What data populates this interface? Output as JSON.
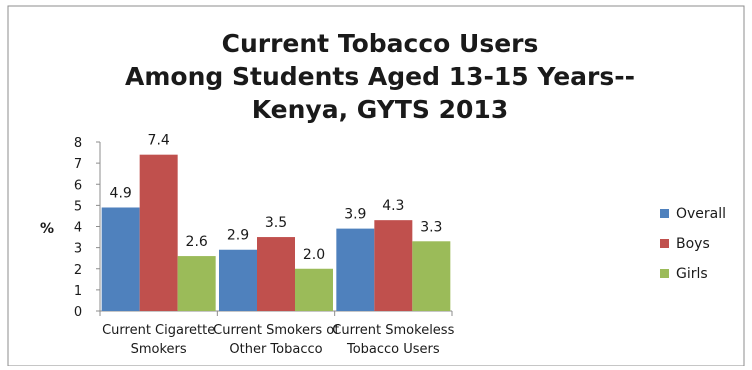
{
  "chart_data": {
    "type": "bar",
    "title_lines": [
      "Current Tobacco Users",
      "Among Students Aged 13-15 Years--",
      "Kenya, GYTS 2013"
    ],
    "ylabel": "%",
    "xlabel": "",
    "ylim": [
      0,
      8
    ],
    "yticks": [
      "0",
      "1",
      "2",
      "3",
      "4",
      "5",
      "6",
      "7",
      "8"
    ],
    "categories": [
      [
        "Current Cigarette",
        "Smokers"
      ],
      [
        "Current Smokers of",
        "Other Tobacco"
      ],
      [
        "Current Smokeless",
        "Tobacco Users"
      ]
    ],
    "series": [
      {
        "name": "Overall",
        "color": "#4F81BD",
        "values": [
          4.9,
          2.9,
          3.9
        ],
        "labels": [
          "4.9",
          "2.9",
          "3.9"
        ]
      },
      {
        "name": "Boys",
        "color": "#C0504D",
        "values": [
          7.4,
          3.5,
          4.3
        ],
        "labels": [
          "7.4",
          "3.5",
          "4.3"
        ]
      },
      {
        "name": "Girls",
        "color": "#9BBB59",
        "values": [
          2.6,
          2.0,
          3.3
        ],
        "labels": [
          "2.6",
          "2.0",
          "3.3"
        ]
      }
    ],
    "grid": false,
    "legend_position": "right"
  }
}
